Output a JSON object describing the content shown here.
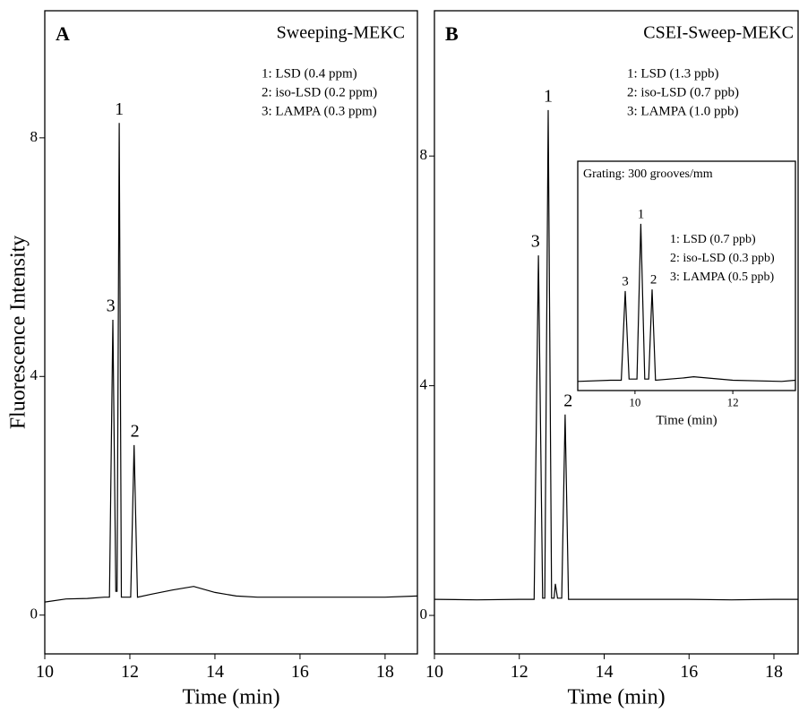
{
  "chart_data": [
    {
      "type": "line",
      "panel": "A",
      "title": "Sweeping-MEKC",
      "legend_lines": [
        "1: LSD (0.4 ppm)",
        "2: iso-LSD (0.2 ppm)",
        "3: LAMPA (0.3 ppm)"
      ],
      "xlabel": "Time (min)",
      "ylabel": "Fluorescence Intensity",
      "xlim": [
        10,
        18.76
      ],
      "ylim": [
        -0.65,
        10.13
      ],
      "xticks": [
        10,
        12,
        14,
        16,
        18
      ],
      "yticks": [
        0,
        4,
        8
      ],
      "series": [
        {
          "color": "#000000",
          "x": [
            10,
            10.5,
            11,
            11.4,
            11.52,
            11.6,
            11.67,
            11.7,
            11.75,
            11.8,
            11.87,
            12.02,
            12.1,
            12.18,
            12.5,
            13,
            13.5,
            14,
            14.5,
            15,
            16,
            17,
            18,
            18.76
          ],
          "values": [
            0.22,
            0.27,
            0.28,
            0.3,
            0.3,
            4.95,
            0.4,
            0.4,
            8.25,
            0.3,
            0.3,
            0.3,
            2.85,
            0.3,
            0.35,
            0.42,
            0.48,
            0.38,
            0.32,
            0.3,
            0.3,
            0.3,
            0.3,
            0.32
          ]
        }
      ],
      "peak_labels": [
        {
          "text": "3",
          "x": 11.55,
          "y": 4.95
        },
        {
          "text": "1",
          "x": 11.75,
          "y": 8.25
        },
        {
          "text": "2",
          "x": 12.12,
          "y": 2.85
        }
      ]
    },
    {
      "type": "line",
      "panel": "B",
      "title": "CSEI-Sweep-MEKC",
      "legend_lines": [
        "1: LSD (1.3 ppb)",
        "2: iso-LSD (0.7 ppb)",
        "3: LAMPA (1.0 ppb)"
      ],
      "xlabel": "Time (min)",
      "xlim": [
        10,
        18.57
      ],
      "ylim": [
        -0.67,
        10.53
      ],
      "xticks": [
        10,
        12,
        14,
        16,
        18
      ],
      "yticks": [
        0,
        4,
        8
      ],
      "series": [
        {
          "color": "#000000",
          "x": [
            10,
            11,
            12,
            12.35,
            12.45,
            12.55,
            12.6,
            12.68,
            12.76,
            12.82,
            12.85,
            12.9,
            13,
            13.08,
            13.16,
            13.5,
            14,
            15,
            16,
            17,
            18,
            18.57
          ],
          "values": [
            0.28,
            0.27,
            0.28,
            0.28,
            6.27,
            0.3,
            0.3,
            8.8,
            0.3,
            0.3,
            0.55,
            0.3,
            0.3,
            3.5,
            0.28,
            0.28,
            0.28,
            0.28,
            0.28,
            0.27,
            0.28,
            0.28
          ]
        }
      ],
      "peak_labels": [
        {
          "text": "3",
          "x": 12.38,
          "y": 6.27
        },
        {
          "text": "1",
          "x": 12.68,
          "y": 8.8
        },
        {
          "text": "2",
          "x": 13.15,
          "y": 3.5
        }
      ]
    },
    {
      "type": "line",
      "title": "Grating: 300 grooves/mm",
      "legend_lines": [
        "1: LSD (0.7 ppb)",
        "2: iso-LSD (0.3 ppb)",
        "3: LAMPA (0.5 ppb)"
      ],
      "xlabel": "Time (min)",
      "xlim": [
        8.83,
        13.28
      ],
      "ylim": [
        0,
        10
      ],
      "xticks": [
        10,
        12
      ],
      "series": [
        {
          "color": "#000000",
          "x": [
            8.83,
            9.5,
            9.72,
            9.8,
            9.88,
            10.04,
            10.12,
            10.2,
            10.28,
            10.35,
            10.42,
            11,
            11.2,
            12,
            13,
            13.28
          ],
          "values": [
            0.4,
            0.45,
            0.45,
            4.34,
            0.5,
            0.5,
            7.27,
            0.5,
            0.5,
            4.41,
            0.45,
            0.55,
            0.6,
            0.45,
            0.4,
            0.45
          ]
        }
      ],
      "peak_labels": [
        {
          "text": "3",
          "x": 9.8,
          "y": 4.34
        },
        {
          "text": "1",
          "x": 10.12,
          "y": 7.27
        },
        {
          "text": "2",
          "x": 10.38,
          "y": 4.41
        }
      ]
    }
  ]
}
